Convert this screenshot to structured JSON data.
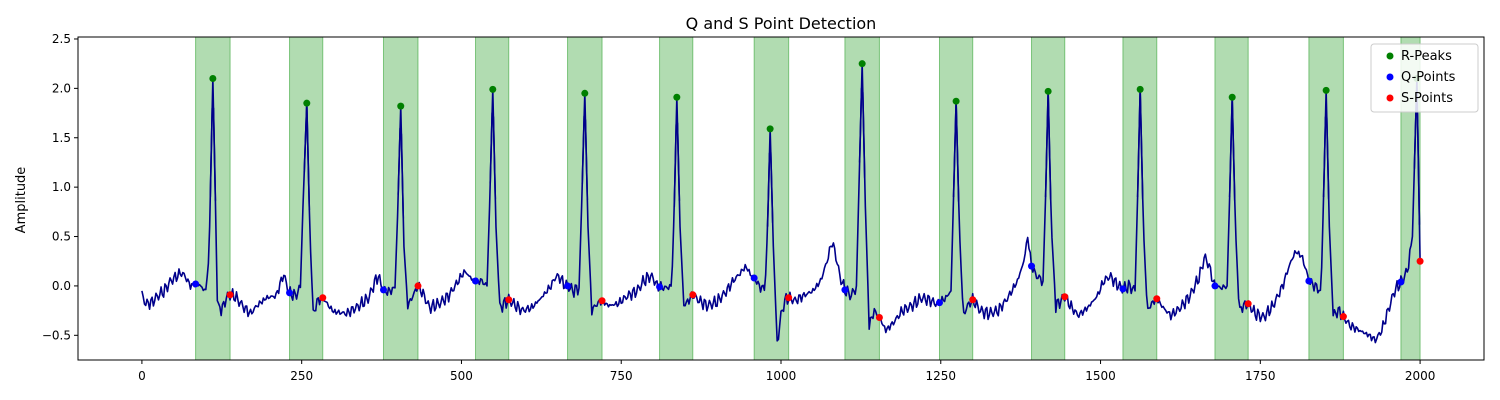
{
  "chart_data": {
    "type": "line",
    "title": "Q and S Point Detection",
    "xlabel": "",
    "ylabel": "Amplitude",
    "xlim": [
      -100,
      2100
    ],
    "ylim": [
      -0.75,
      2.52
    ],
    "xticks": [
      0,
      250,
      500,
      750,
      1000,
      1250,
      1500,
      1750,
      2000
    ],
    "yticks": [
      -0.5,
      0.0,
      0.5,
      1.0,
      1.5,
      2.0,
      2.5
    ],
    "xtick_labels": [
      "0",
      "250",
      "500",
      "750",
      "1000",
      "1250",
      "1500",
      "1750",
      "2000"
    ],
    "ytick_labels": [
      "−0.5",
      "0.0",
      "0.5",
      "1.0",
      "1.5",
      "2.0",
      "2.5"
    ],
    "grid": false,
    "legend_position": "top-right",
    "colors": {
      "signal": "#00008b",
      "r_peaks": "#008000",
      "q_points": "#0000ff",
      "s_points": "#ff0000",
      "qrs_band": "#2ca02c"
    },
    "legend": [
      "R-Peaks",
      "Q-Points",
      "S-Points"
    ],
    "qrs_regions": [
      [
        84,
        138
      ],
      [
        231,
        283
      ],
      [
        378,
        432
      ],
      [
        522,
        574
      ],
      [
        666,
        720
      ],
      [
        810,
        862
      ],
      [
        958,
        1012
      ],
      [
        1100,
        1154
      ],
      [
        1248,
        1300
      ],
      [
        1392,
        1444
      ],
      [
        1535,
        1588
      ],
      [
        1679,
        1731
      ],
      [
        1826,
        1880
      ],
      [
        1970,
        2000
      ]
    ],
    "r_peaks": [
      [
        111,
        2.1
      ],
      [
        258,
        1.85
      ],
      [
        405,
        1.82
      ],
      [
        549,
        1.99
      ],
      [
        693,
        1.95
      ],
      [
        837,
        1.91
      ],
      [
        983,
        1.59
      ],
      [
        1127,
        2.25
      ],
      [
        1274,
        1.87
      ],
      [
        1418,
        1.97
      ],
      [
        1562,
        1.99
      ],
      [
        1706,
        1.91
      ],
      [
        1853,
        1.98
      ],
      [
        1995,
        2.1
      ]
    ],
    "q_points": [
      [
        84,
        0.02
      ],
      [
        231,
        -0.07
      ],
      [
        378,
        -0.04
      ],
      [
        522,
        0.05
      ],
      [
        666,
        0.0
      ],
      [
        810,
        -0.01
      ],
      [
        958,
        0.08
      ],
      [
        1100,
        -0.04
      ],
      [
        1248,
        -0.17
      ],
      [
        1392,
        0.2
      ],
      [
        1535,
        -0.03
      ],
      [
        1679,
        0.0
      ],
      [
        1826,
        0.05
      ],
      [
        1970,
        0.04
      ]
    ],
    "s_points": [
      [
        138,
        -0.09
      ],
      [
        283,
        -0.12
      ],
      [
        432,
        0.0
      ],
      [
        574,
        -0.14
      ],
      [
        720,
        -0.15
      ],
      [
        862,
        -0.09
      ],
      [
        1012,
        -0.12
      ],
      [
        1154,
        -0.32
      ],
      [
        1300,
        -0.14
      ],
      [
        1444,
        -0.11
      ],
      [
        1588,
        -0.13
      ],
      [
        1731,
        -0.18
      ],
      [
        1880,
        -0.31
      ],
      [
        2000,
        0.25
      ]
    ],
    "baseline_shape": [
      [
        0,
        -0.08
      ],
      [
        5,
        -0.18
      ],
      [
        15,
        -0.17
      ],
      [
        25,
        -0.1
      ],
      [
        35,
        -0.05
      ],
      [
        45,
        0.05
      ],
      [
        55,
        0.1
      ],
      [
        60,
        0.13
      ],
      [
        65,
        0.12
      ],
      [
        70,
        0.07
      ],
      [
        76,
        0.0
      ],
      [
        84,
        0.02
      ],
      [
        92,
        0.0
      ],
      [
        100,
        -0.06
      ],
      [
        105,
        0.3
      ],
      [
        108,
        1.2
      ],
      [
        111,
        2.1
      ],
      [
        114,
        1.2
      ],
      [
        118,
        -0.15
      ],
      [
        125,
        -0.25
      ],
      [
        132,
        -0.12
      ],
      [
        138,
        -0.09
      ],
      [
        145,
        -0.1
      ],
      [
        160,
        -0.22
      ],
      [
        170,
        -0.28
      ],
      [
        180,
        -0.2
      ],
      [
        195,
        -0.12
      ],
      [
        210,
        -0.1
      ],
      [
        218,
        0.05
      ],
      [
        222,
        0.12
      ],
      [
        226,
        0.02
      ],
      [
        231,
        -0.07
      ],
      [
        240,
        -0.1
      ],
      [
        248,
        -0.02
      ],
      [
        252,
        0.8
      ],
      [
        258,
        1.85
      ],
      [
        263,
        0.5
      ],
      [
        268,
        -0.28
      ],
      [
        275,
        -0.15
      ],
      [
        283,
        -0.12
      ],
      [
        292,
        -0.2
      ],
      [
        300,
        -0.26
      ],
      [
        320,
        -0.28
      ],
      [
        340,
        -0.2
      ],
      [
        355,
        -0.12
      ],
      [
        365,
        0.05
      ],
      [
        370,
        0.1
      ],
      [
        374,
        0.02
      ],
      [
        378,
        -0.04
      ],
      [
        386,
        -0.06
      ],
      [
        396,
        -0.02
      ],
      [
        400,
        0.7
      ],
      [
        405,
        1.82
      ],
      [
        410,
        0.4
      ],
      [
        416,
        -0.2
      ],
      [
        424,
        -0.1
      ],
      [
        432,
        0.0
      ],
      [
        440,
        -0.08
      ],
      [
        450,
        -0.22
      ],
      [
        465,
        -0.18
      ],
      [
        480,
        -0.1
      ],
      [
        495,
        0.05
      ],
      [
        505,
        0.15
      ],
      [
        512,
        0.1
      ],
      [
        518,
        0.06
      ],
      [
        522,
        0.05
      ],
      [
        532,
        0.05
      ],
      [
        540,
        0.0
      ],
      [
        544,
        0.8
      ],
      [
        549,
        1.99
      ],
      [
        554,
        0.6
      ],
      [
        560,
        -0.22
      ],
      [
        567,
        -0.18
      ],
      [
        574,
        -0.14
      ],
      [
        585,
        -0.2
      ],
      [
        595,
        -0.25
      ],
      [
        610,
        -0.22
      ],
      [
        625,
        -0.12
      ],
      [
        640,
        0.0
      ],
      [
        648,
        0.1
      ],
      [
        655,
        0.08
      ],
      [
        660,
        0.02
      ],
      [
        666,
        0.0
      ],
      [
        675,
        -0.05
      ],
      [
        684,
        -0.02
      ],
      [
        688,
        0.8
      ],
      [
        693,
        1.95
      ],
      [
        698,
        0.6
      ],
      [
        704,
        -0.25
      ],
      [
        712,
        -0.18
      ],
      [
        720,
        -0.15
      ],
      [
        730,
        -0.2
      ],
      [
        745,
        -0.18
      ],
      [
        760,
        -0.1
      ],
      [
        775,
        -0.05
      ],
      [
        785,
        0.05
      ],
      [
        795,
        0.1
      ],
      [
        800,
        0.08
      ],
      [
        806,
        0.0
      ],
      [
        810,
        -0.01
      ],
      [
        820,
        -0.02
      ],
      [
        829,
        0.0
      ],
      [
        833,
        0.8
      ],
      [
        837,
        1.91
      ],
      [
        842,
        0.6
      ],
      [
        848,
        -0.2
      ],
      [
        855,
        -0.15
      ],
      [
        862,
        -0.09
      ],
      [
        872,
        -0.15
      ],
      [
        885,
        -0.2
      ],
      [
        900,
        -0.16
      ],
      [
        915,
        -0.05
      ],
      [
        925,
        0.05
      ],
      [
        935,
        0.12
      ],
      [
        945,
        0.2
      ],
      [
        952,
        0.12
      ],
      [
        958,
        0.08
      ],
      [
        966,
        0.0
      ],
      [
        975,
        -0.05
      ],
      [
        979,
        0.6
      ],
      [
        983,
        1.59
      ],
      [
        988,
        0.4
      ],
      [
        994,
        -0.58
      ],
      [
        1000,
        -0.3
      ],
      [
        1006,
        -0.15
      ],
      [
        1012,
        -0.12
      ],
      [
        1022,
        -0.15
      ],
      [
        1035,
        -0.1
      ],
      [
        1050,
        -0.05
      ],
      [
        1062,
        0.05
      ],
      [
        1072,
        0.25
      ],
      [
        1080,
        0.45
      ],
      [
        1086,
        0.3
      ],
      [
        1092,
        0.1
      ],
      [
        1100,
        -0.04
      ],
      [
        1110,
        -0.1
      ],
      [
        1118,
        0.0
      ],
      [
        1122,
        1.0
      ],
      [
        1127,
        2.25
      ],
      [
        1132,
        0.8
      ],
      [
        1138,
        -0.4
      ],
      [
        1146,
        -0.25
      ],
      [
        1154,
        -0.32
      ],
      [
        1164,
        -0.45
      ],
      [
        1175,
        -0.38
      ],
      [
        1190,
        -0.25
      ],
      [
        1205,
        -0.2
      ],
      [
        1220,
        -0.12
      ],
      [
        1235,
        -0.15
      ],
      [
        1242,
        -0.18
      ],
      [
        1248,
        -0.17
      ],
      [
        1258,
        -0.12
      ],
      [
        1266,
        -0.05
      ],
      [
        1270,
        0.9
      ],
      [
        1274,
        1.87
      ],
      [
        1279,
        0.6
      ],
      [
        1285,
        -0.3
      ],
      [
        1292,
        -0.2
      ],
      [
        1300,
        -0.14
      ],
      [
        1312,
        -0.25
      ],
      [
        1325,
        -0.28
      ],
      [
        1340,
        -0.25
      ],
      [
        1355,
        -0.12
      ],
      [
        1370,
        0.05
      ],
      [
        1380,
        0.25
      ],
      [
        1386,
        0.5
      ],
      [
        1390,
        0.3
      ],
      [
        1392,
        0.2
      ],
      [
        1400,
        0.1
      ],
      [
        1410,
        0.05
      ],
      [
        1414,
        0.9
      ],
      [
        1418,
        1.97
      ],
      [
        1423,
        0.6
      ],
      [
        1430,
        -0.2
      ],
      [
        1438,
        -0.15
      ],
      [
        1444,
        -0.11
      ],
      [
        1455,
        -0.22
      ],
      [
        1465,
        -0.3
      ],
      [
        1480,
        -0.22
      ],
      [
        1495,
        -0.1
      ],
      [
        1505,
        0.05
      ],
      [
        1515,
        0.1
      ],
      [
        1525,
        0.02
      ],
      [
        1535,
        -0.03
      ],
      [
        1545,
        0.0
      ],
      [
        1554,
        -0.05
      ],
      [
        1558,
        0.9
      ],
      [
        1562,
        1.99
      ],
      [
        1567,
        0.6
      ],
      [
        1573,
        -0.25
      ],
      [
        1580,
        -0.18
      ],
      [
        1588,
        -0.13
      ],
      [
        1598,
        -0.22
      ],
      [
        1610,
        -0.3
      ],
      [
        1625,
        -0.22
      ],
      [
        1640,
        -0.1
      ],
      [
        1655,
        0.1
      ],
      [
        1663,
        0.3
      ],
      [
        1670,
        0.2
      ],
      [
        1676,
        0.05
      ],
      [
        1679,
        0.0
      ],
      [
        1688,
        -0.02
      ],
      [
        1698,
        0.0
      ],
      [
        1702,
        0.9
      ],
      [
        1706,
        1.91
      ],
      [
        1711,
        0.6
      ],
      [
        1717,
        -0.25
      ],
      [
        1724,
        -0.2
      ],
      [
        1731,
        -0.18
      ],
      [
        1742,
        -0.28
      ],
      [
        1755,
        -0.32
      ],
      [
        1770,
        -0.2
      ],
      [
        1785,
        0.0
      ],
      [
        1795,
        0.2
      ],
      [
        1805,
        0.35
      ],
      [
        1815,
        0.3
      ],
      [
        1822,
        0.15
      ],
      [
        1826,
        0.05
      ],
      [
        1835,
        0.0
      ],
      [
        1845,
        -0.05
      ],
      [
        1849,
        0.9
      ],
      [
        1853,
        1.98
      ],
      [
        1858,
        0.6
      ],
      [
        1864,
        -0.3
      ],
      [
        1872,
        -0.25
      ],
      [
        1880,
        -0.31
      ],
      [
        1890,
        -0.4
      ],
      [
        1905,
        -0.45
      ],
      [
        1920,
        -0.5
      ],
      [
        1930,
        -0.55
      ],
      [
        1940,
        -0.45
      ],
      [
        1950,
        -0.25
      ],
      [
        1960,
        -0.05
      ],
      [
        1970,
        0.04
      ],
      [
        1980,
        0.15
      ],
      [
        1988,
        0.5
      ],
      [
        1995,
        2.1
      ],
      [
        2000,
        0.25
      ]
    ]
  }
}
